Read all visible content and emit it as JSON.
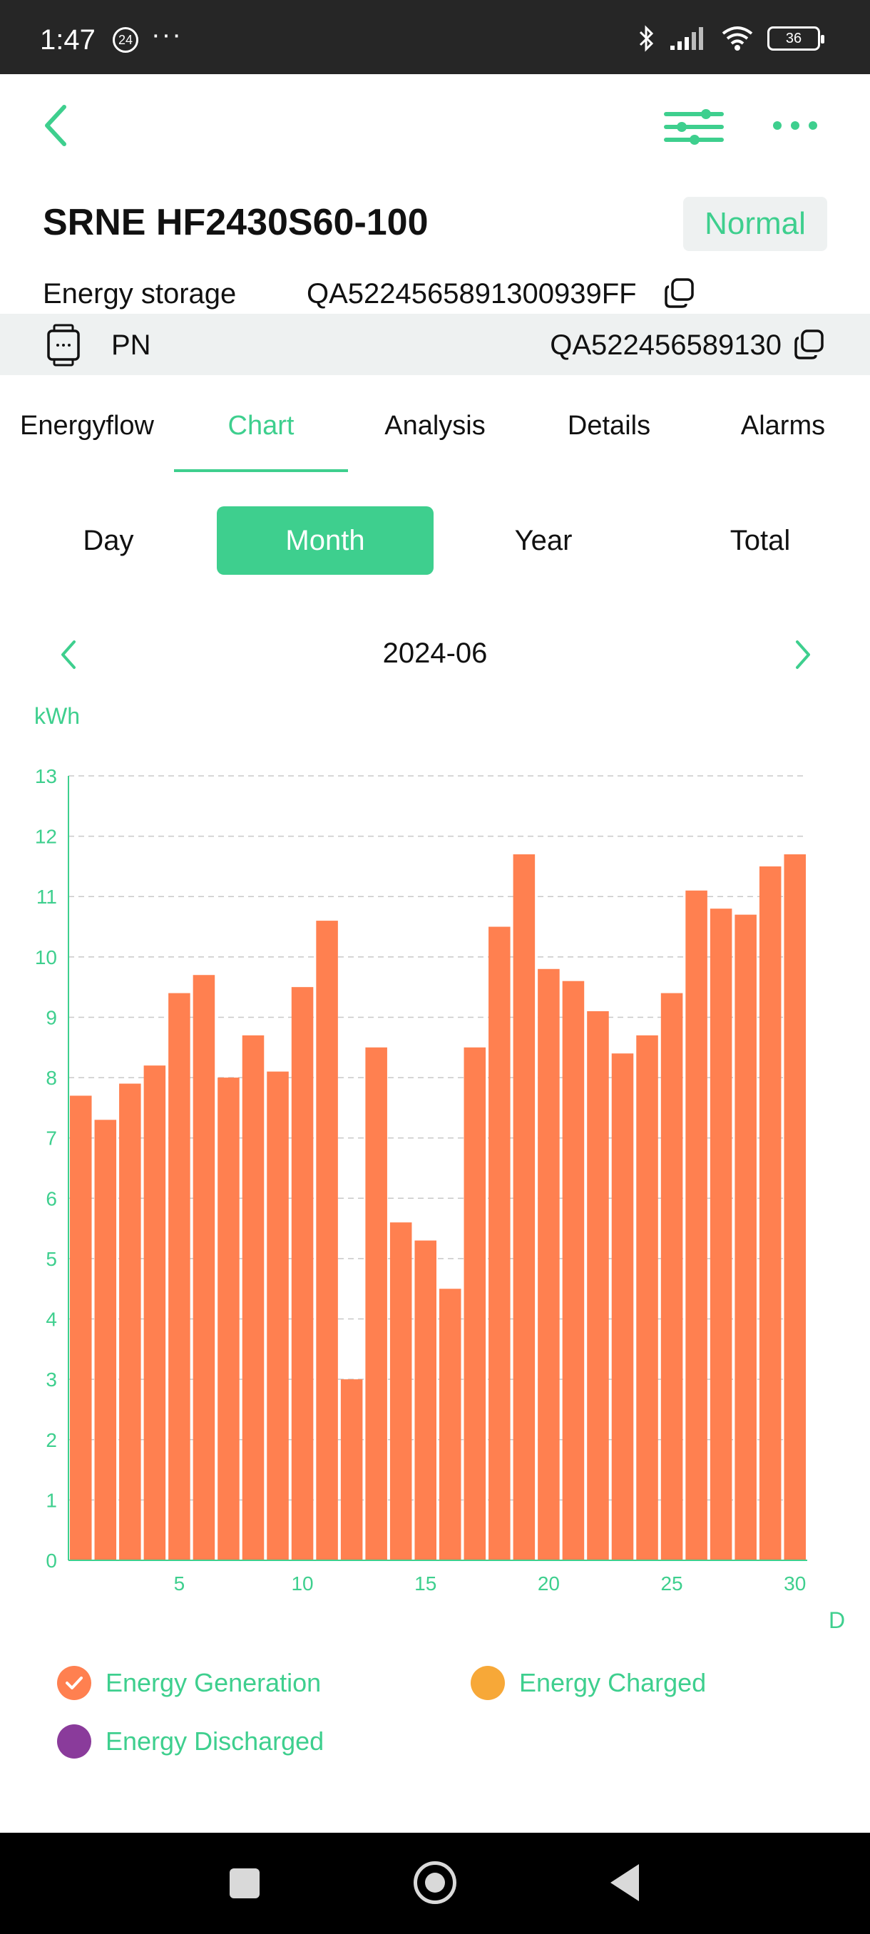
{
  "status_bar": {
    "time": "1:47",
    "badge": "24",
    "dots": "···",
    "battery": "36"
  },
  "device": {
    "title": "SRNE HF2430S60-100",
    "status": "Normal"
  },
  "sn": {
    "label": "Energy storage",
    "value": "QA5224565891300939FF"
  },
  "pn": {
    "label": "PN",
    "value": "QA522456589130"
  },
  "tabs": [
    {
      "label": "Energyflow"
    },
    {
      "label": "Chart"
    },
    {
      "label": "Analysis"
    },
    {
      "label": "Details"
    },
    {
      "label": "Alarms"
    }
  ],
  "active_tab": "Chart",
  "periods": [
    {
      "label": "Day"
    },
    {
      "label": "Month"
    },
    {
      "label": "Year"
    },
    {
      "label": "Total"
    }
  ],
  "active_period": "Month",
  "date": {
    "label": "2024-06"
  },
  "colors": {
    "accent": "#3ecf8e",
    "generation": "#ff8050",
    "charged": "#f7a838",
    "discharged": "#8a3b9b"
  },
  "chart_data": {
    "type": "bar",
    "ylabel": "kWh",
    "xlabel": "D",
    "ylim": [
      0,
      13
    ],
    "yticks": [
      0,
      1,
      2,
      3,
      4,
      5,
      6,
      7,
      8,
      9,
      10,
      11,
      12,
      13
    ],
    "xticks": [
      5,
      10,
      15,
      20,
      25,
      30
    ],
    "grid": true,
    "categories": [
      1,
      2,
      3,
      4,
      5,
      6,
      7,
      8,
      9,
      10,
      11,
      12,
      13,
      14,
      15,
      16,
      17,
      18,
      19,
      20,
      21,
      22,
      23,
      24,
      25,
      26,
      27,
      28,
      29,
      30
    ],
    "series": [
      {
        "name": "Energy Generation",
        "values": [
          7.7,
          7.3,
          7.9,
          8.2,
          9.4,
          9.7,
          8.0,
          8.7,
          8.1,
          9.5,
          10.6,
          3.0,
          8.5,
          5.6,
          5.3,
          4.5,
          8.5,
          10.5,
          11.7,
          9.8,
          9.6,
          9.1,
          8.4,
          8.7,
          9.4,
          11.1,
          10.8,
          10.7,
          11.5,
          11.7
        ]
      }
    ]
  },
  "legend": [
    {
      "label": "Energy Generation",
      "checked": true
    },
    {
      "label": "Energy Charged",
      "checked": false
    },
    {
      "label": "Energy Discharged",
      "checked": false
    }
  ]
}
